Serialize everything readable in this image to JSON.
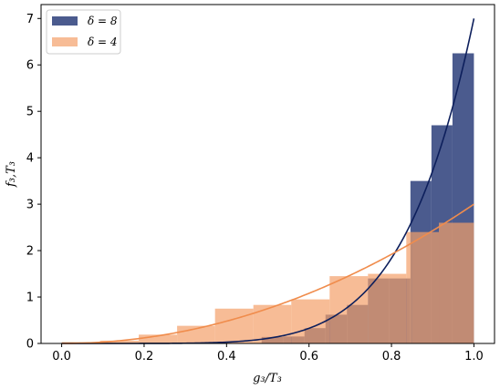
{
  "chart_data": {
    "type": "bar",
    "xlabel": "g₃/T₃",
    "ylabel": "f₃,T₃",
    "xlim": [
      -0.05,
      1.05
    ],
    "ylim": [
      0,
      7.3
    ],
    "xticks": [
      0.0,
      0.2,
      0.4,
      0.6,
      0.8,
      1.0
    ],
    "xtick_labels": [
      "0.0",
      "0.2",
      "0.4",
      "0.6",
      "0.8",
      "1.0"
    ],
    "yticks": [
      0,
      1,
      2,
      3,
      4,
      5,
      6,
      7
    ],
    "ytick_labels": [
      "0",
      "1",
      "2",
      "3",
      "4",
      "5",
      "6",
      "7"
    ],
    "grid": false,
    "legend_position": "upper-left",
    "series": [
      {
        "name": "δ = 8",
        "kind": "histogram",
        "color": "#2c3e7a",
        "opacity": 0.85,
        "bins": [
          {
            "x0": 0.485,
            "x1": 0.537,
            "value": 0.14
          },
          {
            "x0": 0.537,
            "x1": 0.589,
            "value": 0.15
          },
          {
            "x0": 0.589,
            "x1": 0.64,
            "value": 0.33
          },
          {
            "x0": 0.64,
            "x1": 0.692,
            "value": 0.62
          },
          {
            "x0": 0.692,
            "x1": 0.743,
            "value": 0.83
          },
          {
            "x0": 0.743,
            "x1": 0.795,
            "value": 1.4
          },
          {
            "x0": 0.795,
            "x1": 0.846,
            "value": 1.4
          },
          {
            "x0": 0.846,
            "x1": 0.897,
            "value": 3.5
          },
          {
            "x0": 0.897,
            "x1": 0.948,
            "value": 4.7
          },
          {
            "x0": 0.948,
            "x1": 1.0,
            "value": 6.25
          }
        ]
      },
      {
        "name": "δ = 4",
        "kind": "histogram",
        "color": "#f4a06a",
        "opacity": 0.7,
        "bins": [
          {
            "x0": 0.0,
            "x1": 0.093,
            "value": 0.03
          },
          {
            "x0": 0.093,
            "x1": 0.187,
            "value": 0.06
          },
          {
            "x0": 0.187,
            "x1": 0.28,
            "value": 0.19
          },
          {
            "x0": 0.28,
            "x1": 0.372,
            "value": 0.38
          },
          {
            "x0": 0.372,
            "x1": 0.465,
            "value": 0.75
          },
          {
            "x0": 0.465,
            "x1": 0.557,
            "value": 0.83
          },
          {
            "x0": 0.557,
            "x1": 0.65,
            "value": 0.95
          },
          {
            "x0": 0.65,
            "x1": 0.743,
            "value": 1.45
          },
          {
            "x0": 0.743,
            "x1": 0.836,
            "value": 1.5
          },
          {
            "x0": 0.836,
            "x1": 0.85,
            "value": 2.4
          },
          {
            "x0": 0.85,
            "x1": 0.915,
            "value": 2.4
          },
          {
            "x0": 0.915,
            "x1": 1.0,
            "value": 2.6
          }
        ]
      }
    ],
    "curves": [
      {
        "name": "δ = 8",
        "color": "#0d1f5c",
        "formula": "7*x^6"
      },
      {
        "name": "δ = 4",
        "color": "#f08c4c",
        "formula": "3*x^2"
      }
    ]
  }
}
